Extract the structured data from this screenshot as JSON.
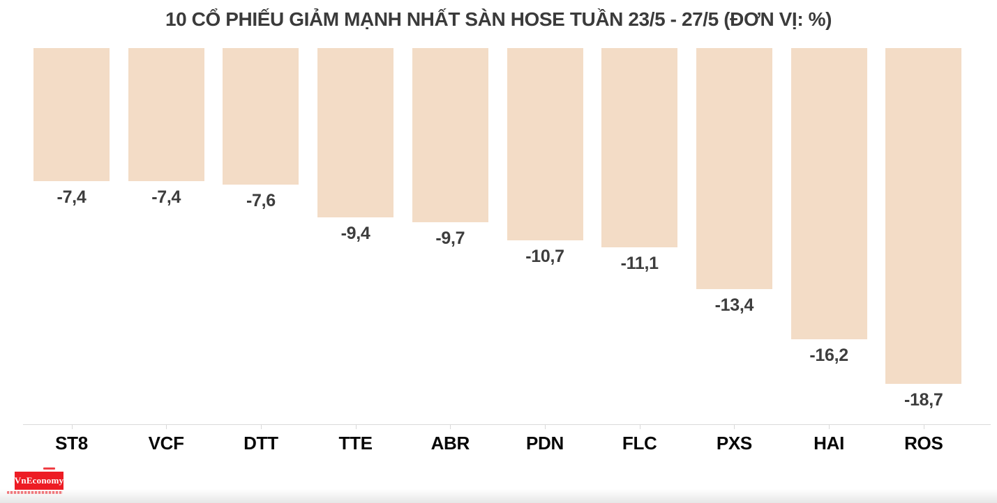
{
  "chart_data": {
    "type": "bar",
    "title": "10 CỔ PHIẾU GIẢM MẠNH NHẤT SÀN HOSE TUẦN 23/5 - 27/5 (ĐƠN VỊ: %)",
    "unit": "%",
    "categories": [
      "ST8",
      "VCF",
      "DTT",
      "TTE",
      "ABR",
      "PDN",
      "FLC",
      "PXS",
      "HAI",
      "ROS"
    ],
    "values": [
      -7.4,
      -7.4,
      -7.6,
      -9.4,
      -9.7,
      -10.7,
      -11.1,
      -13.4,
      -16.2,
      -18.7
    ],
    "value_labels": [
      "-7,4",
      "-7,4",
      "-7,6",
      "-9,4",
      "-9,7",
      "-10,7",
      "-11,1",
      "-13,4",
      "-16,2",
      "-18,7"
    ],
    "ylim": [
      -20,
      0
    ],
    "baseline": 0,
    "grid": false,
    "legend": false,
    "bar_direction": "down-from-top-baseline",
    "value_label_position": "below-bar-end",
    "colors": {
      "bar": "#f3dcc6",
      "title_text": "#3b3b3b",
      "value_label_text": "#3d3d3d",
      "category_label_text": "#060606",
      "axis": "#d9d9d9",
      "background": "#ffffff"
    }
  },
  "branding": {
    "logo_text": "VnEconomy",
    "logo_bg_color": "#ed1c24",
    "logo_text_color": "#ffffff"
  }
}
